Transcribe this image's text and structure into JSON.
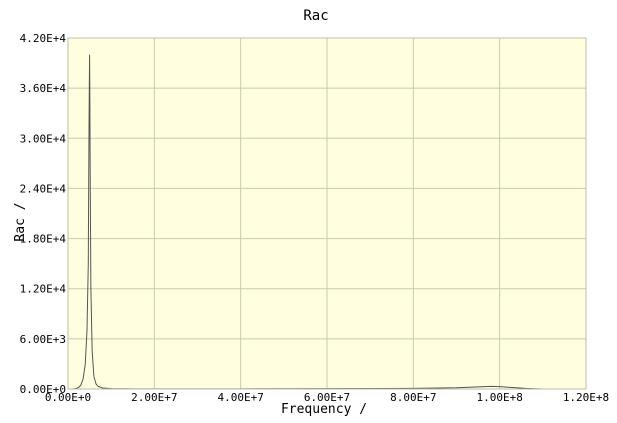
{
  "chart_data": {
    "type": "line",
    "title": "Rac",
    "xlabel": "Frequency /",
    "ylabel": "Rac /",
    "xlim": [
      0,
      120000000
    ],
    "ylim": [
      0,
      42000
    ],
    "x_ticks": [
      0,
      20000000,
      40000000,
      60000000,
      80000000,
      100000000,
      120000000
    ],
    "x_tick_labels": [
      "0.00E+0",
      "2.00E+7",
      "4.00E+7",
      "6.00E+7",
      "8.00E+7",
      "1.00E+8",
      "1.20E+8"
    ],
    "y_ticks": [
      0,
      6000,
      12000,
      18000,
      24000,
      30000,
      36000,
      42000
    ],
    "y_tick_labels": [
      "0.00E+0",
      "6.00E+3",
      "1.20E+4",
      "1.80E+4",
      "2.40E+4",
      "3.00E+4",
      "3.60E+4",
      "4.20E+4"
    ],
    "grid": true,
    "colors": {
      "plot_background": "#ffffe0",
      "grid": "#c8c8b4",
      "line": "#555555"
    },
    "series": [
      {
        "x": [
          0,
          500000,
          1000000,
          1500000,
          2000000,
          2500000,
          3000000,
          3500000,
          4000000,
          4400000,
          4700000,
          4850000,
          4950000,
          5000000,
          5050000,
          5150000,
          5300000,
          5600000,
          6000000,
          6500000,
          7000000,
          8000000,
          10000000,
          15000000,
          20000000,
          40000000,
          60000000,
          80000000,
          90000000,
          95000000,
          98000000,
          100000000,
          103000000,
          106000000,
          110000000
        ],
        "y": [
          0,
          0,
          10,
          30,
          80,
          200,
          500,
          1200,
          3000,
          7000,
          15000,
          30000,
          37000,
          40000,
          36000,
          25000,
          12000,
          4500,
          1500,
          600,
          300,
          120,
          50,
          20,
          15,
          20,
          40,
          80,
          150,
          250,
          320,
          280,
          180,
          80,
          0
        ]
      }
    ]
  }
}
